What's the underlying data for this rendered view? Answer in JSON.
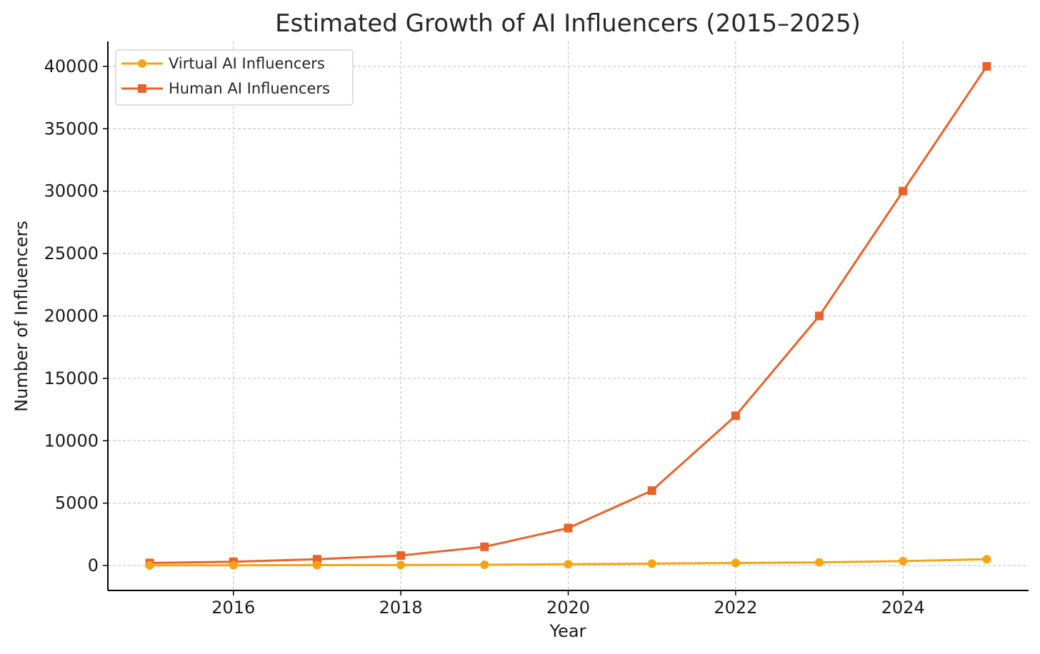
{
  "chart_data": {
    "type": "line",
    "title": "Estimated Growth of AI Influencers (2015–2025)",
    "xlabel": "Year",
    "ylabel": "Number of Influencers",
    "x": [
      2015,
      2016,
      2017,
      2018,
      2019,
      2020,
      2021,
      2022,
      2023,
      2024,
      2025
    ],
    "xlim": [
      2014.5,
      2025.5
    ],
    "ylim": [
      -2000,
      42000
    ],
    "xticks": [
      2016,
      2018,
      2020,
      2022,
      2024
    ],
    "yticks": [
      0,
      5000,
      10000,
      15000,
      20000,
      25000,
      30000,
      35000,
      40000
    ],
    "grid": true,
    "legend_position": "top-left",
    "series": [
      {
        "name": "Virtual AI Influencers",
        "color": "#f5a512",
        "marker": "circle",
        "values": [
          10,
          20,
          30,
          40,
          60,
          100,
          150,
          200,
          250,
          350,
          500
        ]
      },
      {
        "name": "Human AI Influencers",
        "color": "#e8632a",
        "marker": "square",
        "values": [
          200,
          300,
          500,
          800,
          1500,
          3000,
          6000,
          12000,
          20000,
          30000,
          40000
        ]
      }
    ]
  }
}
